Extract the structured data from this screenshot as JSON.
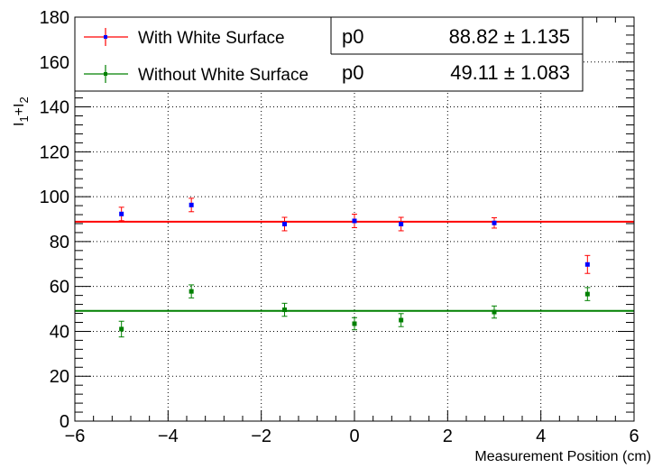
{
  "chart_data": {
    "type": "scatter",
    "title": "",
    "xlabel": "Measurement Position (cm)",
    "ylabel": {
      "base": "I",
      "sub1": "1",
      "plus": "+",
      "sub2": "2"
    },
    "xlim": [
      -6,
      6
    ],
    "ylim": [
      0,
      180
    ],
    "x_ticks": [
      -6,
      -4,
      -2,
      0,
      2,
      4,
      6
    ],
    "x_tick_labels": [
      "−6",
      "−4",
      "−2",
      "0",
      "2",
      "4",
      "6"
    ],
    "y_ticks": [
      0,
      20,
      40,
      60,
      80,
      100,
      120,
      140,
      160,
      180
    ],
    "y_tick_labels": [
      "0",
      "20",
      "40",
      "60",
      "80",
      "100",
      "120",
      "140",
      "160",
      "180"
    ],
    "grid": true,
    "legend_position": "top",
    "series": [
      {
        "name": "With White Surface",
        "line_color": "#ff0000",
        "marker_color": "#0000ff",
        "x": [
          -5,
          -3.5,
          -1.5,
          0,
          1,
          3,
          5
        ],
        "y": [
          92.3,
          96.3,
          87.8,
          89.2,
          87.8,
          88.3,
          69.8
        ],
        "yerr": [
          3.0,
          3.0,
          3.0,
          3.0,
          3.0,
          2.3,
          4.0
        ],
        "fit": {
          "param": "p0",
          "value": "88.82",
          "error": "1.135",
          "y": 88.82
        }
      },
      {
        "name": "Without White Surface",
        "line_color": "#008000",
        "marker_color": "#008000",
        "x": [
          -5,
          -3.5,
          -1.5,
          0,
          1,
          3,
          5
        ],
        "y": [
          41.0,
          57.8,
          49.6,
          43.4,
          45.0,
          48.6,
          56.6
        ],
        "yerr": [
          3.5,
          2.9,
          2.9,
          2.7,
          2.9,
          2.7,
          2.9
        ],
        "fit": {
          "param": "p0",
          "value": "49.11",
          "error": "1.083",
          "y": 49.11
        }
      }
    ]
  }
}
